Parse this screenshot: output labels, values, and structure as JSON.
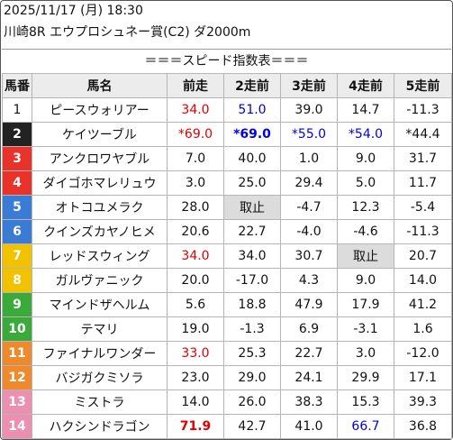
{
  "header": {
    "line1": "2025/11/17 (月) 18:30",
    "line2": "川崎8R エウプロシュネー賞(C2) ダ2000m"
  },
  "subtitle": "＝＝＝スピード指数表＝＝＝",
  "columns": [
    "馬番",
    "馬名",
    "前走",
    "2走前",
    "3走前",
    "4走前",
    "5走前"
  ],
  "rows": [
    {
      "no": "1",
      "name": "ピースウォリアー",
      "bg": "#ffffff",
      "fg": "#111111",
      "cells": [
        {
          "t": "34.0",
          "c": "red"
        },
        {
          "t": "51.0",
          "c": "blue"
        },
        {
          "t": "39.0"
        },
        {
          "t": "14.7"
        },
        {
          "t": "-11.3"
        }
      ]
    },
    {
      "no": "2",
      "name": "ケイツーブル",
      "bg": "#222222",
      "fg": "#ffffff",
      "cells": [
        {
          "t": "*69.0",
          "c": "red"
        },
        {
          "t": "*69.0",
          "c": "blue",
          "b": true
        },
        {
          "t": "*55.0",
          "c": "blue"
        },
        {
          "t": "*54.0",
          "c": "blue"
        },
        {
          "t": "*44.4"
        }
      ]
    },
    {
      "no": "3",
      "name": "アンクロワヤブル",
      "bg": "#e8322a",
      "fg": "#ffffff",
      "cells": [
        {
          "t": "7.0"
        },
        {
          "t": "40.0"
        },
        {
          "t": "1.0"
        },
        {
          "t": "9.0"
        },
        {
          "t": "31.7"
        }
      ]
    },
    {
      "no": "4",
      "name": "ダイゴホマレリュウ",
      "bg": "#e8322a",
      "fg": "#ffffff",
      "cells": [
        {
          "t": "3.0"
        },
        {
          "t": "25.0"
        },
        {
          "t": "29.4"
        },
        {
          "t": "5.0"
        },
        {
          "t": "11.7"
        }
      ]
    },
    {
      "no": "5",
      "name": "オトコユメラク",
      "bg": "#3a7bd5",
      "fg": "#ffffff",
      "cells": [
        {
          "t": "28.0"
        },
        {
          "t": "取止",
          "s": true
        },
        {
          "t": "-4.7"
        },
        {
          "t": "12.3"
        },
        {
          "t": "-5.4"
        }
      ]
    },
    {
      "no": "6",
      "name": "クインズカヤノヒメ",
      "bg": "#3a7bd5",
      "fg": "#ffffff",
      "cells": [
        {
          "t": "20.6"
        },
        {
          "t": "22.7"
        },
        {
          "t": "-4.0"
        },
        {
          "t": "-4.6"
        },
        {
          "t": "-11.3"
        }
      ]
    },
    {
      "no": "7",
      "name": "レッドスウィング",
      "bg": "#f2c200",
      "fg": "#ffffff",
      "cells": [
        {
          "t": "34.0",
          "c": "red"
        },
        {
          "t": "34.0"
        },
        {
          "t": "30.7"
        },
        {
          "t": "取止",
          "s": true
        },
        {
          "t": "20.7"
        }
      ]
    },
    {
      "no": "8",
      "name": "ガルヴァニック",
      "bg": "#f2c200",
      "fg": "#ffffff",
      "cells": [
        {
          "t": "20.0"
        },
        {
          "t": "-17.0"
        },
        {
          "t": "4.3"
        },
        {
          "t": "9.0"
        },
        {
          "t": "14.0"
        }
      ]
    },
    {
      "no": "9",
      "name": "マインドザヘルム",
      "bg": "#3aaa3a",
      "fg": "#ffffff",
      "cells": [
        {
          "t": "5.6"
        },
        {
          "t": "18.8"
        },
        {
          "t": "47.9"
        },
        {
          "t": "17.9"
        },
        {
          "t": "41.2"
        }
      ]
    },
    {
      "no": "10",
      "name": "テマリ",
      "bg": "#3aaa3a",
      "fg": "#ffffff",
      "cells": [
        {
          "t": "19.0"
        },
        {
          "t": "-1.3"
        },
        {
          "t": "6.9"
        },
        {
          "t": "-3.1"
        },
        {
          "t": "1.6"
        }
      ]
    },
    {
      "no": "11",
      "name": "ファイナルワンダー",
      "bg": "#ef8a2c",
      "fg": "#ffffff",
      "cells": [
        {
          "t": "33.0",
          "c": "red"
        },
        {
          "t": "25.3"
        },
        {
          "t": "22.7"
        },
        {
          "t": "3.0"
        },
        {
          "t": "-12.0"
        }
      ]
    },
    {
      "no": "12",
      "name": "バジガクミソラ",
      "bg": "#ef8a2c",
      "fg": "#ffffff",
      "cells": [
        {
          "t": "23.0"
        },
        {
          "t": "29.0"
        },
        {
          "t": "24.1"
        },
        {
          "t": "29.9"
        },
        {
          "t": "17.1"
        }
      ]
    },
    {
      "no": "13",
      "name": "ミストラ",
      "bg": "#ec8fb0",
      "fg": "#ffffff",
      "cells": [
        {
          "t": "14.0"
        },
        {
          "t": "26.0"
        },
        {
          "t": "38.3"
        },
        {
          "t": "15.3"
        },
        {
          "t": "39.3"
        }
      ]
    },
    {
      "no": "14",
      "name": "ハクシンドラゴン",
      "bg": "#ec8fb0",
      "fg": "#ffffff",
      "cells": [
        {
          "t": "71.9",
          "c": "red",
          "b": true
        },
        {
          "t": "42.7"
        },
        {
          "t": "41.0"
        },
        {
          "t": "66.7",
          "c": "blue"
        },
        {
          "t": "36.8"
        }
      ]
    }
  ]
}
